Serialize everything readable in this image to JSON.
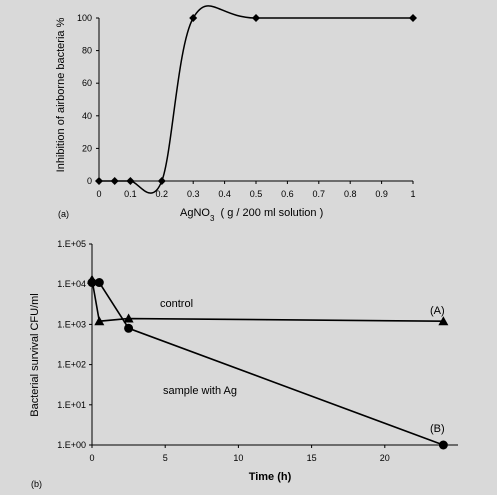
{
  "chart_data": [
    {
      "type": "line",
      "panel_label": "(a)",
      "xlabel_main": "AgNO",
      "xlabel_sub": "3",
      "xlabel_rest": "  ( g / 200 ml solution )",
      "ylabel": "Inhibition of airborne bacteria  %",
      "xlim": [
        0,
        1
      ],
      "ylim": [
        0,
        100
      ],
      "xticks": [
        0,
        0.1,
        0.2,
        0.3,
        0.4,
        0.5,
        0.6,
        0.7,
        0.8,
        0.9,
        1
      ],
      "xtick_labels": [
        "0",
        "0.1",
        "0.2",
        "0.3",
        "0.4",
        "0.5",
        "0.6",
        "0.7",
        "0.8",
        "0.9",
        "1"
      ],
      "yticks": [
        0,
        20,
        40,
        60,
        80,
        100
      ],
      "ytick_labels": [
        "0",
        "20",
        "40",
        "60",
        "80",
        "100"
      ],
      "series": [
        {
          "marker": "diamond",
          "x": [
            0,
            0.05,
            0.1,
            0.2,
            0.3,
            0.5,
            1
          ],
          "y": [
            0,
            0,
            0,
            0,
            100,
            100,
            100
          ]
        }
      ]
    },
    {
      "type": "line",
      "panel_label": "(b)",
      "xlabel": "Time (h)",
      "ylabel": "Bacterial survival CFU/ml",
      "yscale": "log",
      "xlim": [
        0,
        25
      ],
      "ylim": [
        1,
        100000
      ],
      "xticks": [
        0,
        5,
        10,
        15,
        20
      ],
      "xtick_labels": [
        "0",
        "5",
        "10",
        "15",
        "20"
      ],
      "yticks": [
        1,
        10,
        100,
        1000,
        10000,
        100000
      ],
      "ytick_labels": [
        "1.E+00",
        "1.E+01",
        "1.E+02",
        "1.E+03",
        "1.E+04",
        "1.E+05"
      ],
      "series": [
        {
          "marker": "triangle",
          "x": [
            0,
            0.5,
            2.5,
            24
          ],
          "y": [
            13000,
            1200,
            1400,
            1200
          ]
        },
        {
          "marker": "circle",
          "x": [
            0,
            0.5,
            2.5,
            24
          ],
          "y": [
            11000,
            11000,
            800,
            1
          ]
        }
      ],
      "annotations": [
        {
          "text": "control",
          "x": 5.0,
          "y": 2200
        },
        {
          "text": "sample with Ag",
          "x": 5.0,
          "y": 45
        },
        {
          "text": "(A)",
          "x": 23.2,
          "y": 2200
        },
        {
          "text": "(B)",
          "x": 23.2,
          "y": 2
        }
      ]
    }
  ]
}
